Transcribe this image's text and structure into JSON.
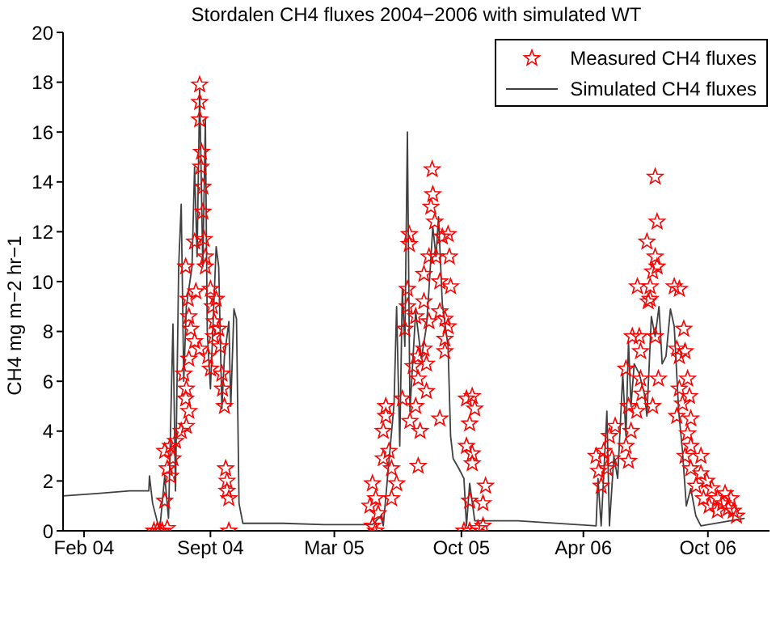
{
  "chart_data": {
    "type": "scatter",
    "title": "Stordalen CH4 fluxes 2004−2006 with simulated WT",
    "ylabel": "CH4 mg m−2 hr−1",
    "xlim": [
      "2004-01-13",
      "2007-01-29"
    ],
    "xticks": [
      {
        "value": "2004-02-15",
        "label": "Feb 04"
      },
      {
        "value": "2004-09-01",
        "label": "Sept 04"
      },
      {
        "value": "2005-03-15",
        "label": "Mar 05"
      },
      {
        "value": "2005-10-01",
        "label": "Oct 05"
      },
      {
        "value": "2006-04-11",
        "label": "Apr 06"
      },
      {
        "value": "2006-10-24",
        "label": "Oct 06"
      }
    ],
    "ylim": [
      0,
      20
    ],
    "yticks": [
      0,
      2,
      4,
      6,
      8,
      10,
      12,
      14,
      16,
      18,
      20
    ],
    "legend": "top right",
    "series": [
      {
        "name": "Measured CH4 fluxes",
        "marker": "star",
        "color": "#ff0000",
        "x": [
          "2004-08-15",
          "2004-08-15",
          "2004-08-15",
          "2004-08-18",
          "2004-08-17",
          "2004-08-20",
          "2004-08-20",
          "2004-08-07",
          "2004-08-22",
          "2004-08-24",
          "2004-08-24",
          "2004-07-24",
          "2004-08-09",
          "2004-09-01",
          "2004-07-28",
          "2004-09-10",
          "2004-09-04",
          "2004-07-29",
          "2004-09-07",
          "2004-08-01",
          "2004-09-14",
          "2004-08-07",
          "2004-09-06",
          "2004-08-15",
          "2004-08-28",
          "2004-09-16",
          "2004-07-29",
          "2004-09-01",
          "2004-09-19",
          "2004-07-21",
          "2004-07-25",
          "2004-09-20",
          "2004-07-24",
          "2004-09-23",
          "2004-07-29",
          "2004-07-25",
          "2004-07-17",
          "2004-07-08",
          "2004-06-30",
          "2004-06-21",
          "2004-07-04",
          "2004-06-25",
          "2004-06-30",
          "2004-09-25",
          "2004-09-27",
          "2004-09-27",
          "2004-09-30",
          "2004-06-21",
          "2004-06-04",
          "2004-06-09",
          "2004-06-13",
          "2004-06-17",
          "2004-06-25",
          "2004-09-30",
          "2005-08-16",
          "2005-08-17",
          "2005-08-14",
          "2005-08-20",
          "2005-09-10",
          "2005-07-11",
          "2005-07-11",
          "2005-09-01",
          "2005-08-11",
          "2005-08-22",
          "2005-09-12",
          "2005-08-03",
          "2005-08-28",
          "2005-09-14",
          "2005-07-08",
          "2005-08-03",
          "2005-07-08",
          "2005-08-28",
          "2005-09-05",
          "2005-09-10",
          "2005-07-21",
          "2005-08-11",
          "2005-07-04",
          "2005-09-05",
          "2005-08-03",
          "2005-09-05",
          "2005-07-25",
          "2005-08-07",
          "2005-07-17",
          "2005-07-25",
          "2005-08-07",
          "2005-06-30",
          "2005-07-21",
          "2005-06-04",
          "2005-10-18",
          "2005-10-09",
          "2005-10-22",
          "2005-10-14",
          "2005-08-28",
          "2005-06-04",
          "2005-07-12",
          "2005-05-31",
          "2005-07-28",
          "2005-10-09",
          "2005-10-18",
          "2005-06-09",
          "2005-05-31",
          "2005-10-18",
          "2005-07-25",
          "2005-06-13",
          "2005-06-21",
          "2005-05-14",
          "2005-11-08",
          "2005-05-19",
          "2005-06-13",
          "2005-10-14",
          "2005-11-04",
          "2005-05-10",
          "2005-05-23",
          "2005-05-14",
          "2005-05-19",
          "2005-10-05",
          "2005-10-14",
          "2005-10-27",
          "2005-11-04",
          "2006-08-02",
          "2006-08-05",
          "2006-07-20",
          "2006-08-02",
          "2006-08-05",
          "2006-07-29",
          "2006-07-05",
          "2006-07-25",
          "2006-09-01",
          "2006-09-09",
          "2006-07-25",
          "2006-07-22",
          "2006-08-02",
          "2006-09-16",
          "2006-06-27",
          "2006-07-08",
          "2006-07-10",
          "2006-09-05",
          "2006-09-18",
          "2006-09-09",
          "2006-06-17",
          "2006-08-07",
          "2006-07-10",
          "2006-09-22",
          "2006-09-09",
          "2006-07-12",
          "2006-07-29",
          "2006-06-21",
          "2006-09-14",
          "2006-09-25",
          "2006-07-04",
          "2006-09-05",
          "2006-09-27",
          "2006-05-31",
          "2006-06-25",
          "2006-09-22",
          "2006-05-22",
          "2006-06-17",
          "2006-05-13",
          "2006-09-27",
          "2006-10-13",
          "2006-05-01",
          "2006-05-26",
          "2006-09-18",
          "2006-05-18",
          "2006-06-21",
          "2006-05-05",
          "2006-09-27",
          "2006-10-13",
          "2006-05-09",
          "2006-10-05",
          "2006-10-22",
          "2006-10-30",
          "2006-10-17",
          "2006-11-08",
          "2006-10-26",
          "2006-11-16",
          "2006-11-25",
          "2006-12-03",
          "2006-11-08",
          "2006-12-08",
          "2006-11-29",
          "2006-11-20"
        ],
        "values": [
          17.9,
          17.2,
          16.5,
          15.2,
          14.6,
          13.8,
          12.8,
          11.6,
          11.7,
          11.0,
          10.6,
          10.6,
          9.6,
          9.7,
          9.3,
          9.3,
          9.0,
          8.6,
          8.4,
          8.1,
          8.1,
          7.6,
          7.8,
          7.3,
          7.0,
          7.4,
          6.9,
          6.5,
          6.3,
          6.3,
          5.7,
          5.7,
          5.3,
          5.0,
          4.8,
          4.2,
          4.0,
          3.6,
          3.4,
          3.2,
          2.9,
          2.5,
          2.2,
          2.5,
          2.0,
          1.6,
          1.3,
          1.2,
          0,
          0,
          0,
          0,
          0.1,
          0,
          14.5,
          13.5,
          13.0,
          12.4,
          11.9,
          11.9,
          11.5,
          11.8,
          11.0,
          11.0,
          11.0,
          10.3,
          10.0,
          9.8,
          9.7,
          9.2,
          9.0,
          8.8,
          8.5,
          8.2,
          8.6,
          8.4,
          8.1,
          7.7,
          7.3,
          7.2,
          7.0,
          6.7,
          6.6,
          6.1,
          5.6,
          5.3,
          5.0,
          5.0,
          5.4,
          5.3,
          4.9,
          4.3,
          4.5,
          4.6,
          4.4,
          4.0,
          4.0,
          3.4,
          3.1,
          3.2,
          2.9,
          2.7,
          2.6,
          2.5,
          1.9,
          1.9,
          1.8,
          1.3,
          1.3,
          1.2,
          1.1,
          1.0,
          0.7,
          0.2,
          0,
          0,
          0,
          0.1,
          0.2,
          14.2,
          12.4,
          11.6,
          11.0,
          10.6,
          10.4,
          9.8,
          9.8,
          9.8,
          9.7,
          9.3,
          9.2,
          7.8,
          8.1,
          7.8,
          7.8,
          7.2,
          7.3,
          7.2,
          7.0,
          6.5,
          6.1,
          6.1,
          6.1,
          5.7,
          5.5,
          5.0,
          5.0,
          5.1,
          5.4,
          4.8,
          4.6,
          4.5,
          4.2,
          4.0,
          3.9,
          3.8,
          3.4,
          3.2,
          3.4,
          3.0,
          3.0,
          2.9,
          3.0,
          2.5,
          2.8,
          2.4,
          2.5,
          2.3,
          1.8,
          1.8,
          2.0,
          1.7,
          1.3,
          1.3,
          1.0,
          1.1,
          0.9,
          0.8,
          0.8,
          0.6,
          1.3,
          1.5
        ]
      },
      {
        "name": "Simulated CH4 fluxes",
        "type": "line",
        "color": "#404040",
        "line_style": "solid",
        "x": [
          "2004-01-13",
          "2004-03-07",
          "2004-04-27",
          "2004-05-27",
          "2004-05-28",
          "2004-06-02",
          "2004-06-13",
          "2004-06-21",
          "2004-06-27",
          "2004-07-04",
          "2004-07-08",
          "2004-07-13",
          "2004-07-17",
          "2004-07-21",
          "2004-07-25",
          "2004-08-03",
          "2004-08-07",
          "2004-08-11",
          "2004-08-15",
          "2004-08-20",
          "2004-08-24",
          "2004-08-27",
          "2004-09-01",
          "2004-09-10",
          "2004-09-14",
          "2004-09-19",
          "2004-09-23",
          "2004-09-30",
          "2004-10-03",
          "2004-10-08",
          "2004-10-12",
          "2004-10-16",
          "2004-10-22",
          "2004-12-25",
          "2005-02-27",
          "2005-05-14",
          "2005-05-27",
          "2005-05-31",
          "2005-06-17",
          "2005-06-21",
          "2005-06-26",
          "2005-06-30",
          "2005-07-04",
          "2005-07-08",
          "2005-07-12",
          "2005-07-21",
          "2005-07-30",
          "2005-08-07",
          "2005-08-11",
          "2005-08-17",
          "2005-08-22",
          "2005-08-26",
          "2005-09-01",
          "2005-09-10",
          "2005-09-14",
          "2005-09-18",
          "2005-09-27",
          "2005-10-05",
          "2005-10-09",
          "2005-10-14",
          "2005-10-22",
          "2005-12-29",
          "2006-05-01",
          "2006-05-04",
          "2006-05-09",
          "2006-05-18",
          "2006-05-22",
          "2006-05-29",
          "2006-06-04",
          "2006-06-12",
          "2006-06-17",
          "2006-06-21",
          "2006-06-25",
          "2006-06-30",
          "2006-07-08",
          "2006-07-16",
          "2006-07-20",
          "2006-07-27",
          "2006-08-02",
          "2006-08-08",
          "2006-08-13",
          "2006-08-19",
          "2006-08-26",
          "2006-09-01",
          "2006-09-08",
          "2006-09-14",
          "2006-09-20",
          "2006-09-27",
          "2006-10-05",
          "2006-10-13",
          "2006-12-20"
        ],
        "values": [
          1.4,
          1.5,
          1.6,
          1.6,
          2.2,
          1.1,
          0,
          2.2,
          0.5,
          8.3,
          1.6,
          10.6,
          13.1,
          6.0,
          9.0,
          10.6,
          14.6,
          11.0,
          17.7,
          10.6,
          16.5,
          8.0,
          5.7,
          11.4,
          10.6,
          4.9,
          7.0,
          8.4,
          5.0,
          8.9,
          8.5,
          1.1,
          0.3,
          0.3,
          0.25,
          0.25,
          0.6,
          0.2,
          5.1,
          9.0,
          3.4,
          9.7,
          7.4,
          16.0,
          4.8,
          8.8,
          6.9,
          8.2,
          9.7,
          12.2,
          11.0,
          12.6,
          9.1,
          7.4,
          3.8,
          2.9,
          2.5,
          2.1,
          0.2,
          1.9,
          0.4,
          0.4,
          0.2,
          2.1,
          0.2,
          4.8,
          0.2,
          3.0,
          2.1,
          6.3,
          3.8,
          7.6,
          5.0,
          6.7,
          6.3,
          5.5,
          4.6,
          8.6,
          7.8,
          9.0,
          6.7,
          7.0,
          8.9,
          8.2,
          4.8,
          3.2,
          1.0,
          1.7,
          0.6,
          0.2,
          0.5
        ]
      }
    ]
  }
}
